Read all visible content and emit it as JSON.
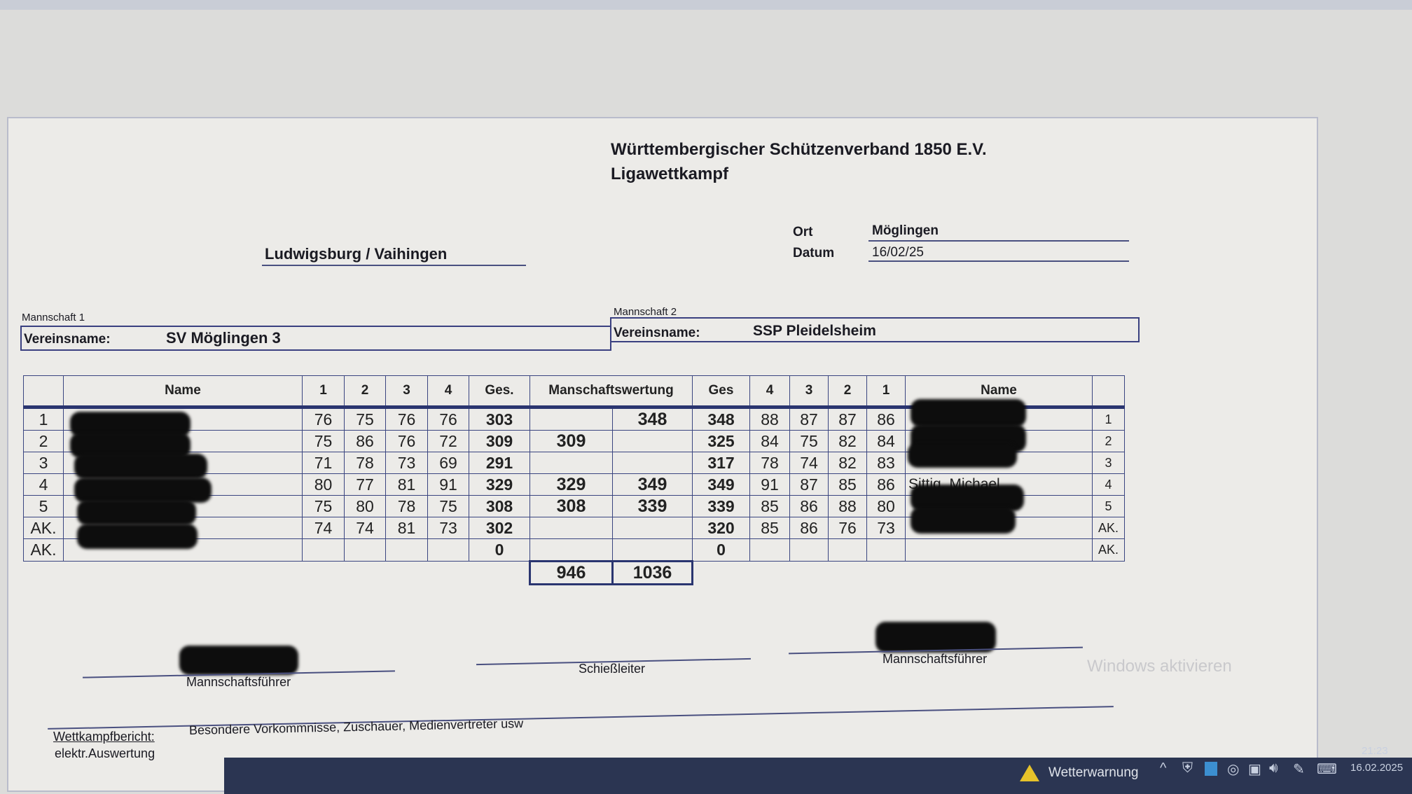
{
  "header": {
    "title": "Württembergischer Schützenverband 1850 E.V.",
    "subtitle": "Ligawettkampf",
    "region": "Ludwigsburg / Vaihingen",
    "ort_label": "Ort",
    "ort_value": "Möglingen",
    "datum_label": "Datum",
    "datum_value": "16/02/25"
  },
  "team1": {
    "section_label": "Mannschaft 1",
    "club_label": "Vereinsname:",
    "club_name": "SV Möglingen 3"
  },
  "team2": {
    "section_label": "Mannschaft 2",
    "club_label": "Vereinsname:",
    "club_name": "SSP Pleidelsheim"
  },
  "table": {
    "left_headers": [
      "Name",
      "1",
      "2",
      "3",
      "4",
      "Ges."
    ],
    "team_score_header": "Manschaftswertung",
    "right_headers": [
      "Ges",
      "4",
      "3",
      "2",
      "1",
      "Name"
    ],
    "rows": [
      {
        "left_pos": "1",
        "left_name": "",
        "left_scores": [
          "76",
          "75",
          "76",
          "76"
        ],
        "left_total": "303",
        "mw1": "",
        "mw2": "348",
        "right_total": "348",
        "right_scores": [
          "88",
          "87",
          "87",
          "86"
        ],
        "right_name": "",
        "right_pos": "1"
      },
      {
        "left_pos": "2",
        "left_name": "",
        "left_scores": [
          "75",
          "86",
          "76",
          "72"
        ],
        "left_total": "309",
        "mw1": "309",
        "mw2": "",
        "right_total": "325",
        "right_scores": [
          "84",
          "75",
          "82",
          "84"
        ],
        "right_name": "",
        "right_pos": "2"
      },
      {
        "left_pos": "3",
        "left_name": "",
        "left_scores": [
          "71",
          "78",
          "73",
          "69"
        ],
        "left_total": "291",
        "mw1": "",
        "mw2": "",
        "right_total": "317",
        "right_scores": [
          "78",
          "74",
          "82",
          "83"
        ],
        "right_name": "",
        "right_pos": "3"
      },
      {
        "left_pos": "4",
        "left_name": "",
        "left_scores": [
          "80",
          "77",
          "81",
          "91"
        ],
        "left_total": "329",
        "mw1": "329",
        "mw2": "349",
        "right_total": "349",
        "right_scores": [
          "91",
          "87",
          "85",
          "86"
        ],
        "right_name": "Sittig, Michael",
        "right_pos": "4"
      },
      {
        "left_pos": "5",
        "left_name": "",
        "left_scores": [
          "75",
          "80",
          "78",
          "75"
        ],
        "left_total": "308",
        "mw1": "308",
        "mw2": "339",
        "right_total": "339",
        "right_scores": [
          "85",
          "86",
          "88",
          "80"
        ],
        "right_name": "",
        "right_pos": "5"
      },
      {
        "left_pos": "AK.",
        "left_name": "",
        "left_scores": [
          "74",
          "74",
          "81",
          "73"
        ],
        "left_total": "302",
        "mw1": "",
        "mw2": "",
        "right_total": "320",
        "right_scores": [
          "85",
          "86",
          "76",
          "73"
        ],
        "right_name": "",
        "right_pos": "AK."
      },
      {
        "left_pos": "AK.",
        "left_name": "",
        "left_scores": [
          "",
          "",
          "",
          ""
        ],
        "left_total": "0",
        "mw1": "",
        "mw2": "",
        "right_total": "0",
        "right_scores": [
          "",
          "",
          "",
          ""
        ],
        "right_name": "",
        "right_pos": "AK."
      }
    ],
    "team_total_1": "946",
    "team_total_2": "1036"
  },
  "signatures": {
    "captain1_label": "Mannschaftsführer",
    "referee_label": "Schießleiter",
    "captain2_label": "Mannschaftsführer"
  },
  "report": {
    "label": "Wettkampfbericht:",
    "hint": "Besondere Vorkommnisse, Zuschauer, Medienvertreter usw",
    "note": "elektr.Auswertung"
  },
  "watermark": "Windows aktivieren",
  "taskbar": {
    "weather_warning": "Wetterwarnung",
    "time": "21:23",
    "date": "16.02.2025",
    "icons": [
      "warning-icon",
      "chevron-up-icon",
      "security-icon",
      "app-icon",
      "camera-icon",
      "display-icon",
      "speaker-icon",
      "pen-icon",
      "keyboard-icon"
    ]
  },
  "colors": {
    "grid_line": "#3a4580",
    "taskbar": "#2b3552",
    "warning": "#e6c22a"
  }
}
